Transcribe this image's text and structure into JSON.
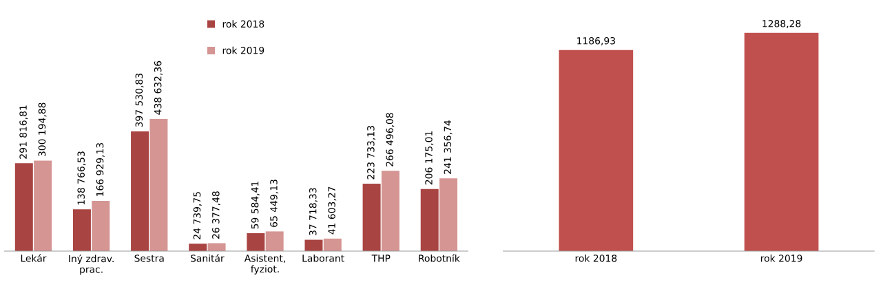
{
  "chart_data": [
    {
      "type": "bar",
      "categories": [
        "Lekár",
        "Iný zdrav.\nprac.",
        "Sestra",
        "Sanitár",
        "Asistent,\nfyziot.",
        "Laborant",
        "THP",
        "Robotník"
      ],
      "series": [
        {
          "name": "rok 2018",
          "color": "#a84442",
          "values": [
            291816.81,
            138766.53,
            397530.83,
            24739.75,
            59584.41,
            37718.33,
            223733.13,
            206175.01
          ],
          "value_labels": [
            "291 816,81",
            "138 766,53",
            "397 530,83",
            "24 739,75",
            "59 584,41",
            "37 718,33",
            "223 733,13",
            "206 175,01"
          ]
        },
        {
          "name": "rok 2019",
          "color": "#d49593",
          "values": [
            300194.88,
            166929.13,
            438632.36,
            26377.48,
            65449.13,
            41603.27,
            266496.08,
            241356.74
          ],
          "value_labels": [
            "300 194,88",
            "166 929,13",
            "438 632,36",
            "26 377,48",
            "65 449,13",
            "41 603,27",
            "266 496,08",
            "241 356,74"
          ]
        }
      ],
      "legend": "top"
    },
    {
      "type": "bar",
      "categories": [
        "rok 2018",
        "rok 2019"
      ],
      "values": [
        1186.93,
        1288.28
      ],
      "value_labels": [
        "1186,93",
        "1288,28"
      ],
      "color": "#c0504d"
    }
  ]
}
